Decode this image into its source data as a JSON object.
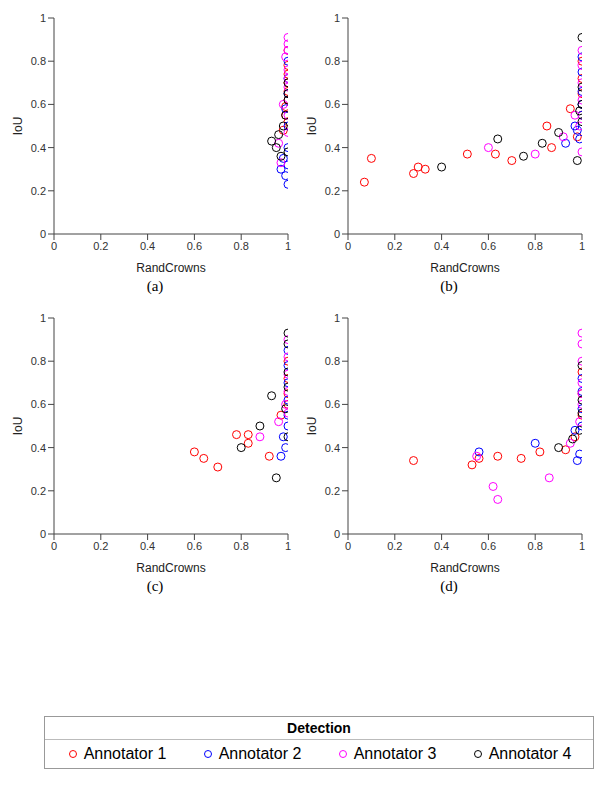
{
  "legend_title": "Detection",
  "chart_data": [
    {
      "type": "scatter",
      "title": "(a)",
      "x_label": "RandCrowns",
      "y_label": "IoU",
      "xlim": [
        0,
        1
      ],
      "ylim": [
        0,
        1
      ],
      "xticks": [
        0,
        0.2,
        0.4,
        0.6,
        0.8,
        1
      ],
      "yticks": [
        0,
        0.2,
        0.4,
        0.6,
        0.8,
        1
      ],
      "grid": false,
      "marker": "circle",
      "series": [
        {
          "name": "Annotator 1",
          "color": "#ff0000",
          "x": [
            1,
            1,
            0.99,
            1,
            1,
            0.98,
            1,
            0.99,
            1,
            1
          ],
          "values": [
            0.62,
            0.7,
            0.55,
            0.78,
            0.85,
            0.48,
            0.66,
            0.59,
            0.74,
            0.52
          ]
        },
        {
          "name": "Annotator 2",
          "color": "#0000ff",
          "x": [
            1,
            0.99,
            1,
            0.98,
            1,
            1,
            0.99,
            1,
            1,
            0.97,
            1
          ],
          "values": [
            0.23,
            0.27,
            0.32,
            0.35,
            0.4,
            0.5,
            0.58,
            0.65,
            0.72,
            0.3,
            0.8
          ]
        },
        {
          "name": "Annotator 3",
          "color": "#ff00ff",
          "x": [
            1,
            1,
            0.99,
            1,
            0.96,
            1,
            0.98,
            1,
            1,
            0.97,
            1,
            1
          ],
          "values": [
            0.91,
            0.88,
            0.82,
            0.76,
            0.42,
            0.68,
            0.6,
            0.55,
            0.85,
            0.33,
            0.72,
            0.47
          ]
        },
        {
          "name": "Annotator 4",
          "color": "#000000",
          "x": [
            0.93,
            0.95,
            0.97,
            0.98,
            1,
            1,
            0.99,
            1,
            0.96,
            1
          ],
          "values": [
            0.43,
            0.4,
            0.36,
            0.5,
            0.62,
            0.65,
            0.55,
            0.38,
            0.46,
            0.7
          ]
        }
      ]
    },
    {
      "type": "scatter",
      "title": "(b)",
      "x_label": "RandCrowns",
      "y_label": "IoU",
      "xlim": [
        0,
        1
      ],
      "ylim": [
        0,
        1
      ],
      "xticks": [
        0,
        0.2,
        0.4,
        0.6,
        0.8,
        1
      ],
      "yticks": [
        0,
        0.2,
        0.4,
        0.6,
        0.8,
        1
      ],
      "grid": false,
      "marker": "circle",
      "series": [
        {
          "name": "Annotator 1",
          "color": "#ff0000",
          "x": [
            0.07,
            0.1,
            0.28,
            0.3,
            0.33,
            0.51,
            0.63,
            0.7,
            0.85,
            0.87,
            0.95,
            0.98,
            1,
            1,
            1,
            1
          ],
          "values": [
            0.24,
            0.35,
            0.28,
            0.31,
            0.3,
            0.37,
            0.37,
            0.34,
            0.5,
            0.4,
            0.58,
            0.45,
            0.55,
            0.65,
            0.72,
            0.8
          ]
        },
        {
          "name": "Annotator 2",
          "color": "#0000ff",
          "x": [
            0.93,
            0.97,
            0.99,
            1,
            1,
            1,
            1,
            1,
            0.98
          ],
          "values": [
            0.42,
            0.5,
            0.44,
            0.6,
            0.66,
            0.75,
            0.82,
            0.55,
            0.48
          ]
        },
        {
          "name": "Annotator 3",
          "color": "#ff00ff",
          "x": [
            0.6,
            0.8,
            0.92,
            0.97,
            1,
            1,
            1,
            1,
            0.99,
            1
          ],
          "values": [
            0.4,
            0.37,
            0.45,
            0.55,
            0.62,
            0.7,
            0.78,
            0.85,
            0.5,
            0.38
          ]
        },
        {
          "name": "Annotator 4",
          "color": "#000000",
          "x": [
            0.4,
            0.64,
            0.75,
            0.83,
            0.9,
            0.98,
            1,
            1,
            1,
            1,
            0.99
          ],
          "values": [
            0.31,
            0.44,
            0.36,
            0.42,
            0.47,
            0.34,
            0.91,
            0.6,
            0.68,
            0.52,
            0.57
          ]
        }
      ]
    },
    {
      "type": "scatter",
      "title": "(c)",
      "x_label": "RandCrowns",
      "y_label": "IoU",
      "xlim": [
        0,
        1
      ],
      "ylim": [
        0,
        1
      ],
      "xticks": [
        0,
        0.2,
        0.4,
        0.6,
        0.8,
        1
      ],
      "yticks": [
        0,
        0.2,
        0.4,
        0.6,
        0.8,
        1
      ],
      "grid": false,
      "marker": "circle",
      "series": [
        {
          "name": "Annotator 1",
          "color": "#ff0000",
          "x": [
            0.6,
            0.64,
            0.7,
            0.78,
            0.83,
            0.83,
            0.92,
            0.97,
            1,
            1,
            1,
            1
          ],
          "values": [
            0.38,
            0.35,
            0.31,
            0.46,
            0.46,
            0.42,
            0.36,
            0.55,
            0.65,
            0.72,
            0.8,
            0.6
          ]
        },
        {
          "name": "Annotator 2",
          "color": "#0000ff",
          "x": [
            0.97,
            0.98,
            1,
            1,
            1,
            1,
            1,
            0.99,
            1
          ],
          "values": [
            0.36,
            0.45,
            0.5,
            0.55,
            0.62,
            0.7,
            0.78,
            0.4,
            0.85
          ]
        },
        {
          "name": "Annotator 3",
          "color": "#ff00ff",
          "x": [
            0.88,
            0.96,
            0.99,
            1,
            1,
            1,
            1,
            1
          ],
          "values": [
            0.45,
            0.52,
            0.6,
            0.66,
            0.74,
            0.82,
            0.9,
            0.56
          ]
        },
        {
          "name": "Annotator 4",
          "color": "#000000",
          "x": [
            0.8,
            0.88,
            0.93,
            0.95,
            0.99,
            1,
            1,
            1,
            1,
            1
          ],
          "values": [
            0.4,
            0.5,
            0.64,
            0.26,
            0.58,
            0.68,
            0.75,
            0.88,
            0.93,
            0.45
          ]
        }
      ]
    },
    {
      "type": "scatter",
      "title": "(d)",
      "x_label": "RandCrowns",
      "y_label": "IoU",
      "xlim": [
        0,
        1
      ],
      "ylim": [
        0,
        1
      ],
      "xticks": [
        0,
        0.2,
        0.4,
        0.6,
        0.8,
        1
      ],
      "yticks": [
        0,
        0.2,
        0.4,
        0.6,
        0.8,
        1
      ],
      "grid": false,
      "marker": "circle",
      "series": [
        {
          "name": "Annotator 1",
          "color": "#ff0000",
          "x": [
            0.28,
            0.53,
            0.56,
            0.64,
            0.74,
            0.82,
            0.93,
            0.97,
            1,
            1,
            1
          ],
          "values": [
            0.34,
            0.32,
            0.35,
            0.36,
            0.35,
            0.38,
            0.39,
            0.45,
            0.55,
            0.65,
            0.75
          ]
        },
        {
          "name": "Annotator 2",
          "color": "#0000ff",
          "x": [
            0.56,
            0.8,
            0.98,
            0.97,
            1,
            1,
            1,
            1,
            0.99
          ],
          "values": [
            0.38,
            0.42,
            0.34,
            0.48,
            0.58,
            0.66,
            0.72,
            0.5,
            0.37
          ]
        },
        {
          "name": "Annotator 3",
          "color": "#ff00ff",
          "x": [
            0.55,
            0.62,
            0.64,
            0.86,
            0.95,
            1,
            1,
            1,
            1,
            1,
            0.99,
            1
          ],
          "values": [
            0.36,
            0.22,
            0.16,
            0.26,
            0.42,
            0.6,
            0.7,
            0.8,
            0.88,
            0.93,
            0.52,
            0.65
          ]
        },
        {
          "name": "Annotator 4",
          "color": "#000000",
          "x": [
            0.9,
            0.96,
            0.99,
            1,
            1,
            1
          ],
          "values": [
            0.4,
            0.44,
            0.48,
            0.56,
            0.62,
            0.78
          ]
        }
      ]
    }
  ]
}
